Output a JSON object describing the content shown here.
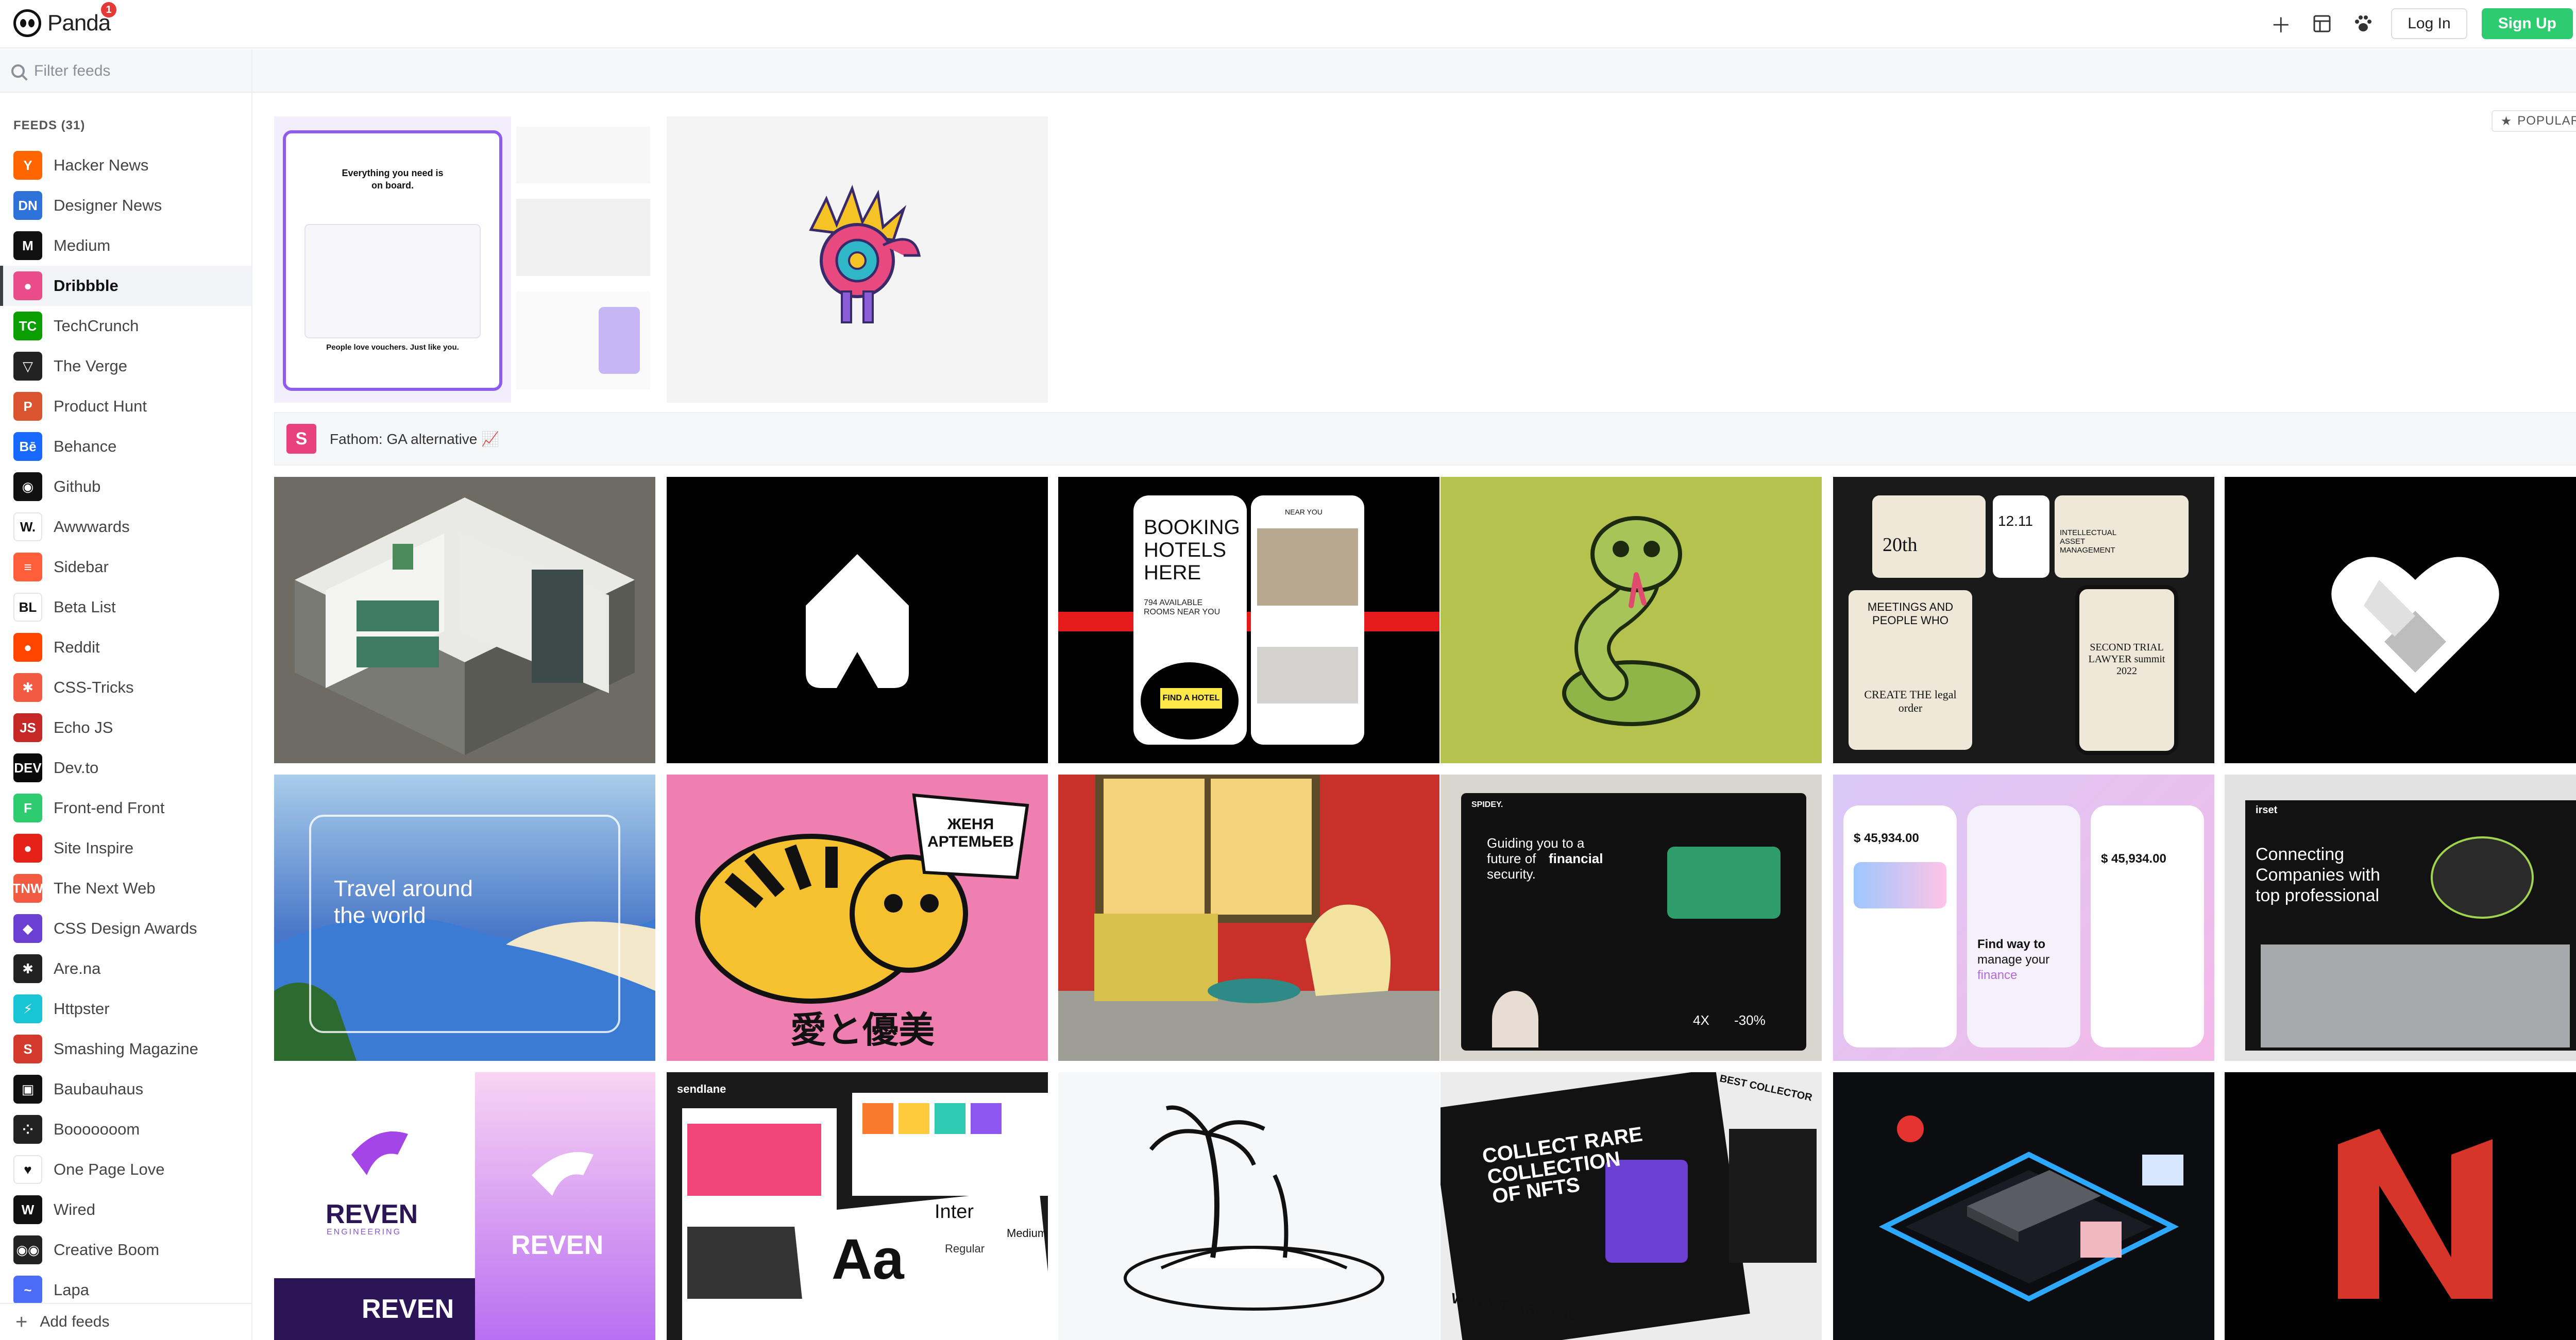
{
  "app": {
    "name": "Panda",
    "notification_count": "1"
  },
  "header": {
    "login_label": "Log In",
    "signup_label": "Sign Up",
    "brand_green": "#2ecc71"
  },
  "filter": {
    "placeholder": "Filter feeds",
    "popular_label": "POPULAR"
  },
  "sidebar": {
    "feeds_title": "FEEDS (31)",
    "active": "Dribbble",
    "items": [
      {
        "label": "Hacker News",
        "icon": "Y",
        "color": "#ff6600"
      },
      {
        "label": "Designer News",
        "icon": "DN",
        "color": "#2d72d9"
      },
      {
        "label": "Medium",
        "icon": "M",
        "color": "#111111"
      },
      {
        "label": "Dribbble",
        "icon": "●",
        "color": "#ea4c89"
      },
      {
        "label": "TechCrunch",
        "icon": "TC",
        "color": "#0a9e01"
      },
      {
        "label": "The Verge",
        "icon": "▽",
        "color": "#222222"
      },
      {
        "label": "Product Hunt",
        "icon": "P",
        "color": "#da552f"
      },
      {
        "label": "Behance",
        "icon": "Bē",
        "color": "#1769ff"
      },
      {
        "label": "Github",
        "icon": "◉",
        "color": "#111111"
      },
      {
        "label": "Awwwards",
        "icon": "W.",
        "color": "#ffffff"
      },
      {
        "label": "Sidebar",
        "icon": "≡",
        "color": "#ff5e3a"
      },
      {
        "label": "Beta List",
        "icon": "BL",
        "color": "#ffffff"
      },
      {
        "label": "Reddit",
        "icon": "●",
        "color": "#ff4500"
      },
      {
        "label": "CSS-Tricks",
        "icon": "✱",
        "color": "#f25a41"
      },
      {
        "label": "Echo JS",
        "icon": "JS",
        "color": "#c62828"
      },
      {
        "label": "Dev.to",
        "icon": "DEV",
        "color": "#0a0a0a"
      },
      {
        "label": "Front-end Front",
        "icon": "F",
        "color": "#2ecc71"
      },
      {
        "label": "Site Inspire",
        "icon": "●",
        "color": "#e62117"
      },
      {
        "label": "The Next Web",
        "icon": "TNW",
        "color": "#f25a41"
      },
      {
        "label": "CSS Design Awards",
        "icon": "◆",
        "color": "#6a3fd1"
      },
      {
        "label": "Are.na",
        "icon": "✱",
        "color": "#222222"
      },
      {
        "label": "Httpster",
        "icon": "⚡",
        "color": "#19c4d4"
      },
      {
        "label": "Smashing Magazine",
        "icon": "S",
        "color": "#d33a2c"
      },
      {
        "label": "Baubauhaus",
        "icon": "▣",
        "color": "#111111"
      },
      {
        "label": "Booooooom",
        "icon": "⁘",
        "color": "#222222"
      },
      {
        "label": "One Page Love",
        "icon": "♥",
        "color": "#ffffff"
      },
      {
        "label": "Wired",
        "icon": "W",
        "color": "#111111"
      },
      {
        "label": "Creative Boom",
        "icon": "◉◉",
        "color": "#222222"
      },
      {
        "label": "Lapa",
        "icon": "~",
        "color": "#4a6cf7"
      }
    ],
    "add_label": "Add feeds"
  },
  "ad": {
    "icon": "S",
    "text": "Fathom: GA alternative 📈"
  },
  "shots": {
    "booking": {
      "l1": "BOOKING",
      "l2": "HOTELS",
      "l3": "HERE",
      "sub": "794 AVAILABLE ROOMS NEAR YOU",
      "btn": "FIND A HOTEL",
      "near": "NEAR YOU"
    },
    "travel": "Travel around the world",
    "jenya": "ЖЕНЯ АРТЕМЬЕВ",
    "kanji": "愛と優美",
    "spidey": {
      "brand": "SPIDEY.",
      "l1": "Guiding you to a",
      "l2": "future of",
      "l3": "financial",
      "l4": "security.",
      "stat1": "4X",
      "stat2": "-30%"
    },
    "finance": {
      "amount": "$ 45,934.00",
      "t1": "Find way to",
      "t2": "manage your",
      "t3": "finance"
    },
    "irset": {
      "brand": "irset",
      "l1": "Connecting",
      "l2": "Companies with",
      "l3": "top professional"
    },
    "onboard": {
      "t1": "Everything you need is",
      "t2": "on board.",
      "t3": "People love vouchers. Just like you."
    },
    "reven": "REVEN",
    "reven_sub": "ENGINEERING",
    "sendlane": {
      "brand": "sendlane",
      "aa": "Aa",
      "inter": "Inter",
      "regular": "Regular",
      "medium": "Medium"
    },
    "nft": {
      "l1": "COLLECT RARE",
      "l2": "COLLECTION",
      "l3": "OF NFTS",
      "l4": "WHY WE ARE THE",
      "l5": "BEST COLLECTOR"
    },
    "meetings": {
      "t1": "MEETINGS AND PEOPLE WHO",
      "t2": "CREATE THE legal order",
      "t3": "SECOND TRIAL LAWYER summit 2022",
      "t4": "INTELLECTUAL ASSET MANAGEMENT",
      "num": "20th",
      "date": "12.11"
    }
  }
}
